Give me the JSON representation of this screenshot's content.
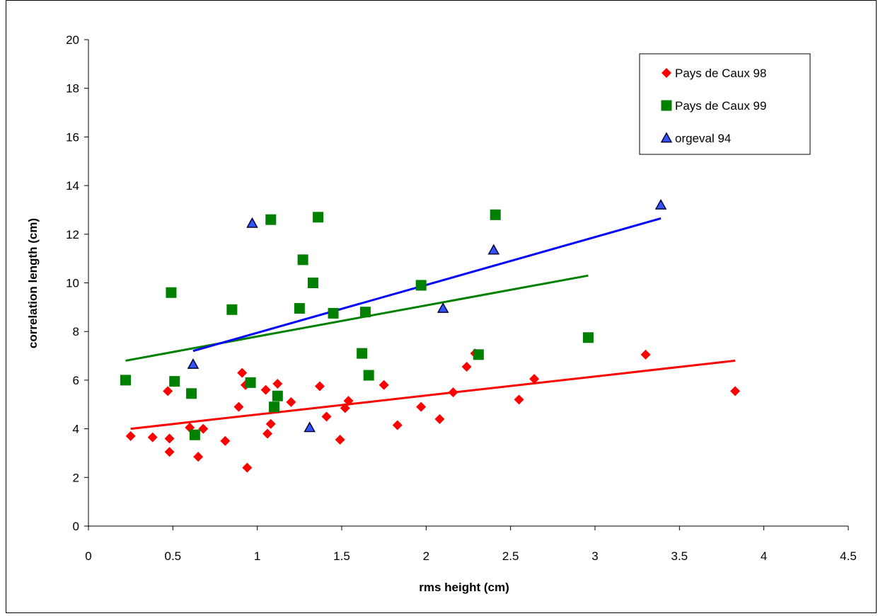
{
  "chart_data": {
    "type": "scatter",
    "xlabel": "rms height (cm)",
    "ylabel": "correlation length (cm)",
    "xlim": [
      0,
      4.5
    ],
    "ylim": [
      0,
      20
    ],
    "xticks": [
      "0",
      "0.5",
      "1",
      "1.5",
      "2",
      "2.5",
      "3",
      "3.5",
      "4",
      "4.5"
    ],
    "yticks": [
      "0",
      "2",
      "4",
      "6",
      "8",
      "10",
      "12",
      "14",
      "16",
      "18",
      "20"
    ],
    "grid": false,
    "legend_position": "top-right",
    "series": [
      {
        "name": "Pays de Caux 98",
        "marker": "diamond",
        "color": "#ff0000",
        "points": [
          [
            0.25,
            3.7
          ],
          [
            0.38,
            3.65
          ],
          [
            0.47,
            5.55
          ],
          [
            0.48,
            3.6
          ],
          [
            0.48,
            3.05
          ],
          [
            0.6,
            4.05
          ],
          [
            0.65,
            2.85
          ],
          [
            0.68,
            4.0
          ],
          [
            0.81,
            3.5
          ],
          [
            0.89,
            4.9
          ],
          [
            0.91,
            6.3
          ],
          [
            0.93,
            5.8
          ],
          [
            0.94,
            2.4
          ],
          [
            1.05,
            5.6
          ],
          [
            1.06,
            3.8
          ],
          [
            1.08,
            4.2
          ],
          [
            1.12,
            5.85
          ],
          [
            1.2,
            5.1
          ],
          [
            1.37,
            5.75
          ],
          [
            1.41,
            4.5
          ],
          [
            1.49,
            3.55
          ],
          [
            1.52,
            4.85
          ],
          [
            1.54,
            5.15
          ],
          [
            1.75,
            5.8
          ],
          [
            1.83,
            4.15
          ],
          [
            1.97,
            4.9
          ],
          [
            2.08,
            4.4
          ],
          [
            2.16,
            5.5
          ],
          [
            2.24,
            6.55
          ],
          [
            2.29,
            7.1
          ],
          [
            2.55,
            5.2
          ],
          [
            2.64,
            6.05
          ],
          [
            3.3,
            7.05
          ],
          [
            3.83,
            5.55
          ]
        ],
        "trend": [
          [
            0.25,
            4.0
          ],
          [
            3.83,
            6.8
          ]
        ]
      },
      {
        "name": "Pays de Caux 99",
        "marker": "square",
        "color": "#008000",
        "points": [
          [
            0.22,
            6.0
          ],
          [
            0.49,
            9.6
          ],
          [
            0.51,
            5.95
          ],
          [
            0.61,
            5.45
          ],
          [
            0.63,
            3.75
          ],
          [
            0.85,
            8.9
          ],
          [
            0.96,
            5.9
          ],
          [
            1.08,
            12.6
          ],
          [
            1.1,
            4.9
          ],
          [
            1.12,
            5.35
          ],
          [
            1.25,
            8.95
          ],
          [
            1.27,
            10.95
          ],
          [
            1.33,
            10.0
          ],
          [
            1.36,
            12.7
          ],
          [
            1.45,
            8.75
          ],
          [
            1.62,
            7.1
          ],
          [
            1.64,
            8.8
          ],
          [
            1.66,
            6.2
          ],
          [
            1.97,
            9.9
          ],
          [
            2.31,
            7.05
          ],
          [
            2.41,
            12.8
          ],
          [
            2.96,
            7.75
          ]
        ],
        "trend": [
          [
            0.22,
            6.8
          ],
          [
            2.96,
            10.3
          ]
        ]
      },
      {
        "name": "orgeval 94",
        "marker": "triangle",
        "color": "#3355ff",
        "points": [
          [
            0.62,
            6.65
          ],
          [
            0.97,
            12.45
          ],
          [
            1.31,
            4.05
          ],
          [
            2.1,
            8.95
          ],
          [
            2.4,
            11.35
          ],
          [
            3.39,
            13.2
          ]
        ],
        "trend": [
          [
            0.62,
            7.2
          ],
          [
            3.39,
            12.65
          ]
        ]
      }
    ]
  }
}
